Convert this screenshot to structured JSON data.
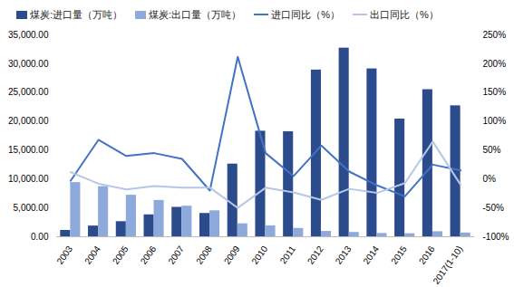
{
  "chart_data": {
    "type": "bar",
    "categories": [
      "2003",
      "2004",
      "2005",
      "2006",
      "2007",
      "2008",
      "2009",
      "2010",
      "2011",
      "2012",
      "2013",
      "2014",
      "2015",
      "2016",
      "2017(1-10)"
    ],
    "series": [
      {
        "name": "煤炭:进口量（万吨）",
        "type": "bar",
        "color": "#2B4B8C",
        "values": [
          1100,
          1860,
          2620,
          3800,
          5100,
          4040,
          12600,
          18300,
          18200,
          28900,
          32700,
          29100,
          20400,
          25500,
          22700
        ]
      },
      {
        "name": "煤炭:出口量（万吨）",
        "type": "bar",
        "color": "#8EA9DB",
        "values": [
          9400,
          8700,
          7200,
          6300,
          5300,
          4500,
          2250,
          1900,
          1450,
          930,
          750,
          570,
          530,
          880,
          650
        ]
      },
      {
        "name": "进口同比（%）",
        "type": "line",
        "axis": "y2",
        "color": "#4472C4",
        "values": [
          -3,
          68,
          40,
          45,
          35,
          -20,
          212,
          45,
          5,
          58,
          13,
          -11,
          -30,
          25,
          15
        ]
      },
      {
        "name": "出口同比（%）",
        "type": "line",
        "axis": "y2",
        "color": "#B4C7E7",
        "values": [
          12,
          -8,
          -18,
          -12,
          -15,
          -15,
          -50,
          -15,
          -23,
          -36,
          -17,
          -24,
          -7,
          65,
          -10
        ]
      }
    ],
    "ylim": [
      0,
      35000
    ],
    "yticks": [
      {
        "value": 0,
        "label": "0.00"
      },
      {
        "value": 5000,
        "label": "5,000.00"
      },
      {
        "value": 10000,
        "label": "10,000.00"
      },
      {
        "value": 15000,
        "label": "15,000.00"
      },
      {
        "value": 20000,
        "label": "20,000.00"
      },
      {
        "value": 25000,
        "label": "25,000.00"
      },
      {
        "value": 30000,
        "label": "30,000.00"
      },
      {
        "value": 35000,
        "label": "35,000.00"
      }
    ],
    "y2lim": [
      -100,
      250
    ],
    "y2ticks": [
      {
        "value": -100,
        "label": "-100%"
      },
      {
        "value": -50,
        "label": "-50%"
      },
      {
        "value": 0,
        "label": "0%"
      },
      {
        "value": 50,
        "label": "50%"
      },
      {
        "value": 100,
        "label": "100%"
      },
      {
        "value": 150,
        "label": "150%"
      },
      {
        "value": 200,
        "label": "200%"
      },
      {
        "value": 250,
        "label": "250%"
      }
    ],
    "grid": false,
    "legend": "top-left"
  }
}
